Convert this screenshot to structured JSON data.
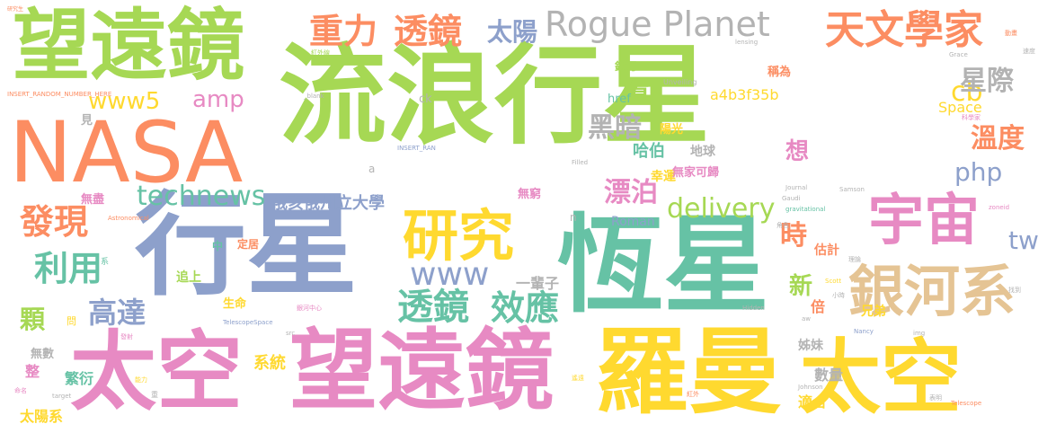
{
  "palette": {
    "green": "#a6d854",
    "orange": "#fc8d62",
    "blue": "#8da0cb",
    "teal": "#66c2a5",
    "pink": "#e78ac3",
    "yellow": "#ffd92f",
    "tan": "#e5c494",
    "gray": "#b3b3b3"
  },
  "words": [
    {
      "text": "流浪行星",
      "color": "green"
    },
    {
      "text": "行星",
      "color": "blue"
    },
    {
      "text": "恆星",
      "color": "teal"
    },
    {
      "text": "望遠鏡",
      "color": "green"
    },
    {
      "text": "NASA",
      "color": "orange"
    },
    {
      "text": "太空",
      "color": "pink"
    },
    {
      "text": "望遠鏡",
      "color": "pink"
    },
    {
      "text": "羅曼",
      "color": "yellow"
    },
    {
      "text": "太空",
      "color": "yellow"
    },
    {
      "text": "宇宙",
      "color": "pink"
    },
    {
      "text": "銀河系",
      "color": "tan"
    },
    {
      "text": "研究",
      "color": "yellow"
    },
    {
      "text": "Rogue Planet",
      "color": "gray"
    },
    {
      "text": "天文學家",
      "color": "orange"
    },
    {
      "text": "重力",
      "color": "orange"
    },
    {
      "text": "透鏡",
      "color": "orange"
    },
    {
      "text": "太陽",
      "color": "blue"
    },
    {
      "text": "www5",
      "color": "yellow"
    },
    {
      "text": "amp",
      "color": "pink"
    },
    {
      "text": "technews",
      "color": "teal"
    },
    {
      "text": "發現",
      "color": "orange"
    },
    {
      "text": "利用",
      "color": "teal"
    },
    {
      "text": "高達",
      "color": "blue"
    },
    {
      "text": "透鏡",
      "color": "teal"
    },
    {
      "text": "效應",
      "color": "teal"
    },
    {
      "text": "www",
      "color": "blue"
    },
    {
      "text": "delivery",
      "color": "green"
    },
    {
      "text": "php",
      "color": "blue"
    },
    {
      "text": "cb",
      "color": "yellow"
    },
    {
      "text": "星際",
      "color": "gray"
    },
    {
      "text": "溫度",
      "color": "orange"
    },
    {
      "text": "時",
      "color": "orange"
    },
    {
      "text": "tw",
      "color": "blue"
    },
    {
      "text": "黑暗",
      "color": "gray"
    },
    {
      "text": "漂泊",
      "color": "pink"
    },
    {
      "text": "億",
      "color": "green"
    },
    {
      "text": "想",
      "color": "pink"
    },
    {
      "text": "新",
      "color": "green"
    },
    {
      "text": "顆",
      "color": "green"
    },
    {
      "text": "俄亥俄州立大學",
      "color": "blue"
    },
    {
      "text": "一輩子",
      "color": "gray"
    },
    {
      "text": "a4b3f35b",
      "color": "yellow"
    },
    {
      "text": "哈伯",
      "color": "teal"
    },
    {
      "text": "Space",
      "color": "yellow"
    },
    {
      "text": "系統",
      "color": "yellow"
    },
    {
      "text": "繁衍",
      "color": "teal"
    },
    {
      "text": "太陽系",
      "color": "yellow"
    },
    {
      "text": "數量",
      "color": "gray"
    },
    {
      "text": "適合",
      "color": "yellow"
    },
    {
      "text": "姊妹",
      "color": "gray"
    },
    {
      "text": "兄弟",
      "color": "yellow"
    },
    {
      "text": "倍",
      "color": "orange"
    },
    {
      "text": "估計",
      "color": "orange"
    },
    {
      "text": "Roman",
      "color": "blue"
    },
    {
      "text": "地球",
      "color": "gray"
    },
    {
      "text": "幸運",
      "color": "yellow"
    },
    {
      "text": "陽光",
      "color": "yellow"
    },
    {
      "text": "銀河",
      "color": "green"
    },
    {
      "text": "無家可歸",
      "color": "pink"
    },
    {
      "text": "無窮",
      "color": "pink"
    },
    {
      "text": "href",
      "color": "teal"
    },
    {
      "text": "追上",
      "color": "green"
    },
    {
      "text": "生命",
      "color": "yellow"
    },
    {
      "text": "定居",
      "color": "orange"
    },
    {
      "text": "整",
      "color": "pink"
    },
    {
      "text": "無數",
      "color": "gray"
    },
    {
      "text": "無盡",
      "color": "pink"
    },
    {
      "text": "見",
      "color": "gray"
    },
    {
      "text": "中",
      "color": "teal"
    },
    {
      "text": "稱為",
      "color": "orange"
    },
    {
      "text": "ck",
      "color": "gray"
    },
    {
      "text": "n",
      "color": "gray"
    },
    {
      "text": "a",
      "color": "gray"
    },
    {
      "text": "INSERT_RANDOM_NUMBER_HERE",
      "color": "orange"
    },
    {
      "text": "研究生",
      "color": "orange"
    },
    {
      "text": "Unveiling",
      "color": "gray"
    },
    {
      "text": "紅外線",
      "color": "green"
    },
    {
      "text": "_blank",
      "color": "gray"
    },
    {
      "text": "INSERT_RAN",
      "color": "blue"
    },
    {
      "text": "Filled",
      "color": "gray"
    },
    {
      "text": "Astronomical",
      "color": "orange"
    },
    {
      "text": "TelescopeSpace",
      "color": "blue"
    },
    {
      "text": "Telescope",
      "color": "orange"
    },
    {
      "text": "Journal",
      "color": "gray"
    },
    {
      "text": "Gaudi",
      "color": "gray"
    },
    {
      "text": "gravitational",
      "color": "teal"
    },
    {
      "text": "Samson",
      "color": "gray"
    },
    {
      "text": "Johnson",
      "color": "gray"
    },
    {
      "text": "Hidden",
      "color": "gray"
    },
    {
      "text": "Nancy",
      "color": "blue"
    },
    {
      "text": "Grace",
      "color": "gray"
    },
    {
      "text": "lensing",
      "color": "gray"
    },
    {
      "text": "Scott",
      "color": "yellow"
    },
    {
      "text": "zoneid",
      "color": "pink"
    },
    {
      "text": "target",
      "color": "gray"
    },
    {
      "text": "src",
      "color": "gray"
    },
    {
      "text": "img",
      "color": "gray"
    },
    {
      "text": "aw",
      "color": "gray"
    },
    {
      "text": "銀河中心",
      "color": "pink"
    },
    {
      "text": "科學家",
      "color": "pink"
    },
    {
      "text": "動畫",
      "color": "orange"
    },
    {
      "text": "速度",
      "color": "gray"
    },
    {
      "text": "發射",
      "color": "pink"
    },
    {
      "text": "命名",
      "color": "pink"
    },
    {
      "text": "能力",
      "color": "yellow"
    },
    {
      "text": "問",
      "color": "yellow"
    },
    {
      "text": "系",
      "color": "teal"
    },
    {
      "text": "重",
      "color": "gray"
    },
    {
      "text": "紅外",
      "color": "orange"
    },
    {
      "text": "遙遠",
      "color": "yellow"
    },
    {
      "text": "表明",
      "color": "gray"
    },
    {
      "text": "角色",
      "color": "gray"
    },
    {
      "text": "理論",
      "color": "gray"
    },
    {
      "text": "小時",
      "color": "gray"
    },
    {
      "text": "找到",
      "color": "gray"
    }
  ]
}
